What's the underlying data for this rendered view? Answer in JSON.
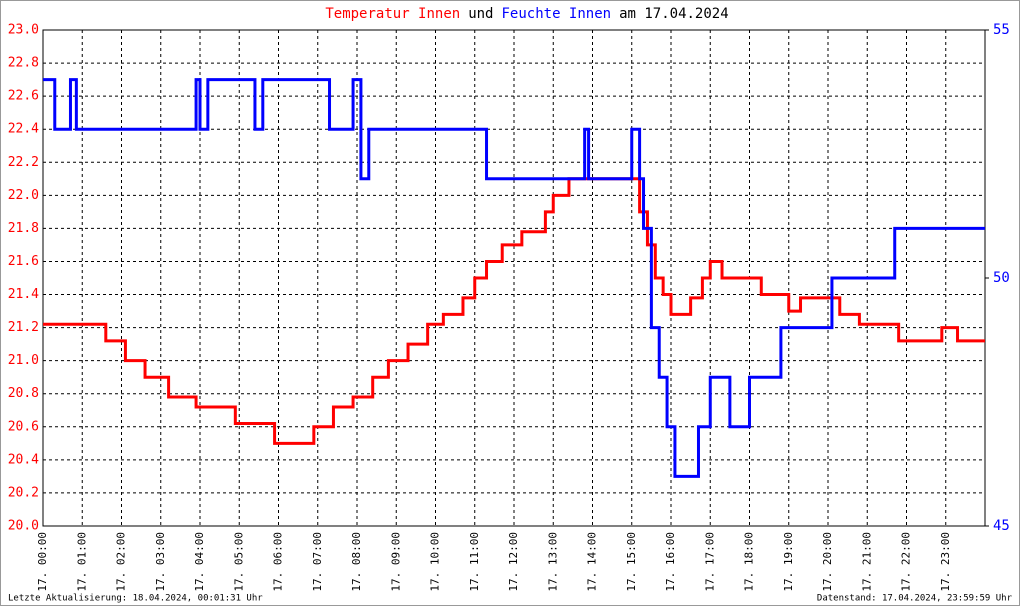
{
  "chart_data": {
    "type": "line",
    "title": [
      "Temperatur Innen",
      "und",
      "Feuchte Innen",
      "am 17.04.2024"
    ],
    "footer_left": "Letzte Aktualisierung: 18.04.2024, 00:01:31 Uhr",
    "footer_right": "Datenstand: 17.04.2024, 23:59:59 Uhr",
    "grid": true,
    "xlim": [
      0,
      24
    ],
    "xticks": [
      {
        "value": 0,
        "label": "17. 00:00"
      },
      {
        "value": 1,
        "label": "17. 01:00"
      },
      {
        "value": 2,
        "label": "17. 02:00"
      },
      {
        "value": 3,
        "label": "17. 03:00"
      },
      {
        "value": 4,
        "label": "17. 04:00"
      },
      {
        "value": 5,
        "label": "17. 05:00"
      },
      {
        "value": 6,
        "label": "17. 06:00"
      },
      {
        "value": 7,
        "label": "17. 07:00"
      },
      {
        "value": 8,
        "label": "17. 08:00"
      },
      {
        "value": 9,
        "label": "17. 09:00"
      },
      {
        "value": 10,
        "label": "17. 10:00"
      },
      {
        "value": 11,
        "label": "17. 11:00"
      },
      {
        "value": 12,
        "label": "17. 12:00"
      },
      {
        "value": 13,
        "label": "17. 13:00"
      },
      {
        "value": 14,
        "label": "17. 14:00"
      },
      {
        "value": 15,
        "label": "17. 15:00"
      },
      {
        "value": 16,
        "label": "17. 16:00"
      },
      {
        "value": 17,
        "label": "17. 17:00"
      },
      {
        "value": 18,
        "label": "17. 18:00"
      },
      {
        "value": 19,
        "label": "17. 19:00"
      },
      {
        "value": 20,
        "label": "17. 20:00"
      },
      {
        "value": 21,
        "label": "17. 21:00"
      },
      {
        "value": 22,
        "label": "17. 22:00"
      },
      {
        "value": 23,
        "label": "17. 23:00"
      }
    ],
    "ylim": [
      20.0,
      23.0
    ],
    "yticks": [
      {
        "value": 20,
        "label": "20.0"
      },
      20.2,
      20.4,
      20.6,
      20.8,
      {
        "value": 21,
        "label": "21.0"
      },
      21.2,
      21.4,
      21.6,
      21.8,
      {
        "value": 22,
        "label": "22.0"
      },
      22.2,
      22.4,
      22.6,
      22.8,
      {
        "value": 23,
        "label": "23.0"
      }
    ],
    "y2lim": [
      45,
      55
    ],
    "y2ticks": [
      45,
      50,
      55
    ],
    "series": [
      {
        "name": "Temperatur Innen",
        "color": "#ff0000",
        "x": [
          0,
          1.6,
          1.6,
          2.1,
          2.1,
          2.6,
          2.6,
          3.2,
          3.2,
          3.9,
          3.9,
          4.9,
          4.9,
          5.9,
          5.9,
          6.9,
          6.9,
          7.4,
          7.4,
          7.9,
          7.9,
          8.4,
          8.4,
          8.8,
          8.8,
          9.3,
          9.3,
          9.8,
          9.8,
          10.2,
          10.2,
          10.7,
          10.7,
          11.0,
          11.0,
          11.3,
          11.3,
          11.7,
          11.7,
          12.2,
          12.2,
          12.8,
          12.8,
          13.0,
          13.0,
          13.4,
          13.4,
          15.2,
          15.2,
          15.4,
          15.4,
          15.6,
          15.6,
          15.8,
          15.8,
          16.0,
          16.0,
          16.5,
          16.5,
          16.8,
          16.8,
          17.0,
          17.0,
          17.3,
          17.3,
          18.3,
          18.3,
          19.0,
          19.0,
          19.3,
          19.3,
          20.3,
          20.3,
          20.8,
          20.8,
          21.8,
          21.8,
          22.9,
          22.9,
          23.3,
          23.3,
          24
        ],
        "values": [
          21.22,
          21.22,
          21.12,
          21.12,
          21.0,
          21.0,
          20.9,
          20.9,
          20.78,
          20.78,
          20.72,
          20.72,
          20.62,
          20.62,
          20.5,
          20.5,
          20.6,
          20.6,
          20.72,
          20.72,
          20.78,
          20.78,
          20.9,
          20.9,
          21.0,
          21.0,
          21.1,
          21.1,
          21.22,
          21.22,
          21.28,
          21.28,
          21.38,
          21.38,
          21.5,
          21.5,
          21.6,
          21.6,
          21.7,
          21.7,
          21.78,
          21.78,
          21.9,
          21.9,
          22.0,
          22.0,
          22.1,
          22.1,
          21.9,
          21.9,
          21.7,
          21.7,
          21.5,
          21.5,
          21.4,
          21.4,
          21.28,
          21.28,
          21.38,
          21.38,
          21.5,
          21.5,
          21.6,
          21.6,
          21.5,
          21.5,
          21.4,
          21.4,
          21.3,
          21.3,
          21.38,
          21.38,
          21.28,
          21.28,
          21.22,
          21.22,
          21.12,
          21.12,
          21.2,
          21.2,
          21.12,
          21.12
        ]
      },
      {
        "name": "Feuchte Innen",
        "color": "#0000ff",
        "axis": "y2",
        "x": [
          0,
          0.3,
          0.3,
          0.7,
          0.7,
          0.85,
          0.85,
          3.9,
          3.9,
          4.0,
          4.0,
          4.2,
          4.2,
          5.4,
          5.4,
          5.6,
          5.6,
          7.3,
          7.3,
          7.9,
          7.9,
          8.1,
          8.1,
          8.3,
          8.3,
          11.3,
          11.3,
          13.8,
          13.8,
          13.9,
          13.9,
          15.0,
          15.0,
          15.2,
          15.2,
          15.3,
          15.3,
          15.5,
          15.5,
          15.7,
          15.7,
          15.9,
          15.9,
          16.1,
          16.1,
          16.7,
          16.7,
          17.0,
          17.0,
          17.5,
          17.5,
          18.0,
          18.0,
          18.8,
          18.8,
          20.1,
          20.1,
          21.7,
          21.7,
          24
        ],
        "values": [
          54,
          54,
          53,
          53,
          54,
          54,
          53,
          53,
          54,
          54,
          53,
          53,
          54,
          54,
          53,
          53,
          54,
          54,
          53,
          53,
          54,
          54,
          52,
          52,
          53,
          53,
          52,
          52,
          53,
          53,
          52,
          52,
          53,
          53,
          52,
          52,
          51,
          51,
          49,
          49,
          48,
          48,
          47,
          47,
          46,
          46,
          47,
          47,
          48,
          48,
          47,
          47,
          48,
          48,
          49,
          49,
          50,
          50,
          51,
          51
        ]
      }
    ]
  }
}
